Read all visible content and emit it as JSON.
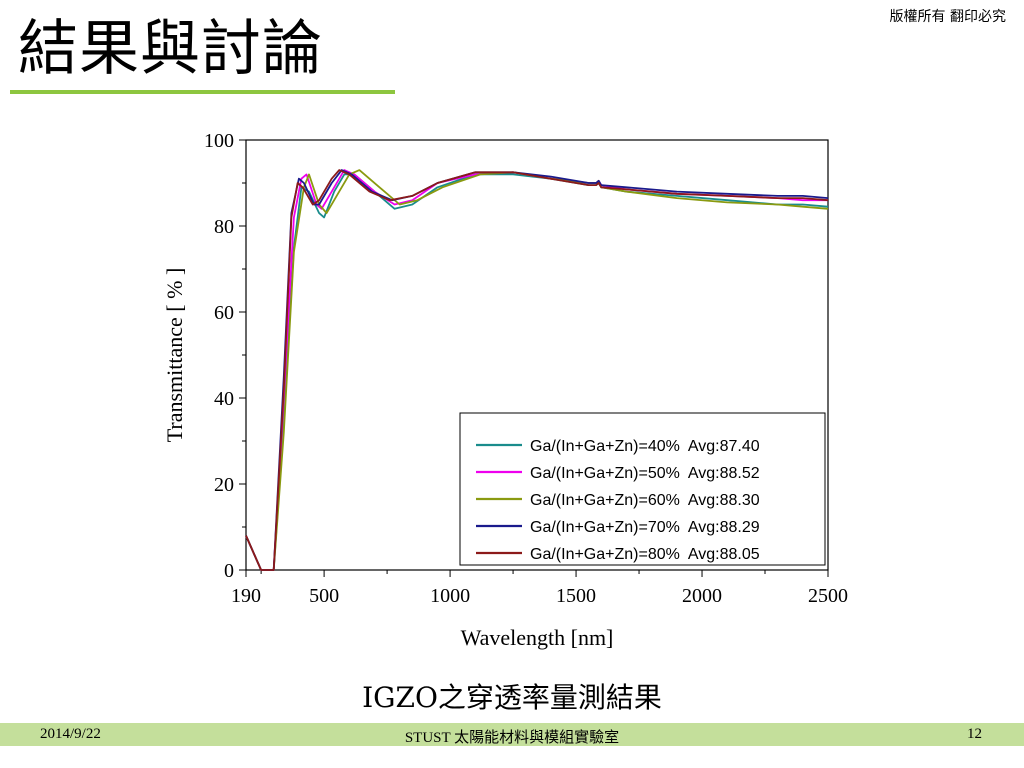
{
  "header": {
    "copyright": "版權所有 翻印必究",
    "title": "結果與討論",
    "accent_color": "#8dc63f"
  },
  "caption": "IGZO之穿透率量測結果",
  "footer": {
    "date": "2014/9/22",
    "center": "STUST 太陽能材料與模組實驗室",
    "page": "12",
    "bar_color": "#c4df9b"
  },
  "chart_data": {
    "type": "line",
    "xlabel": "Wavelength [nm]",
    "ylabel": "Transmittance [ % ]",
    "xlim": [
      190,
      2500
    ],
    "ylim": [
      0,
      100
    ],
    "xticks": [
      190,
      500,
      1000,
      1500,
      2000,
      2500
    ],
    "yticks": [
      0,
      20,
      40,
      60,
      80,
      100
    ],
    "grid": false,
    "legend_position": "bottom-right",
    "series": [
      {
        "name": "Ga/(In+Ga+Zn)=40%  Avg:87.40",
        "color": "#1a8c8c",
        "x": [
          190,
          250,
          300,
          340,
          380,
          410,
          440,
          480,
          500,
          540,
          580,
          620,
          700,
          780,
          850,
          950,
          1100,
          1250,
          1400,
          1550,
          1580,
          1590,
          1600,
          1700,
          1900,
          2100,
          2300,
          2400,
          2500
        ],
        "y": [
          8,
          0,
          0,
          35,
          75,
          89,
          88,
          83,
          82,
          88,
          92,
          92,
          88,
          84,
          85,
          89,
          92,
          92,
          91,
          89.5,
          89.5,
          90,
          89,
          88,
          87,
          86,
          85,
          85,
          84.5
        ]
      },
      {
        "name": "Ga/(In+Ga+Zn)=50%  Avg:88.52",
        "color": "#ee00ee",
        "x": [
          190,
          250,
          300,
          340,
          380,
          410,
          430,
          470,
          490,
          540,
          580,
          620,
          700,
          780,
          850,
          950,
          1100,
          1250,
          1400,
          1550,
          1580,
          1590,
          1600,
          1700,
          1900,
          2100,
          2300,
          2400,
          2500
        ],
        "y": [
          8,
          0,
          0,
          40,
          82,
          91,
          92,
          85,
          84,
          89,
          93,
          92,
          88,
          85,
          86,
          90,
          92,
          92.5,
          91,
          90,
          90,
          90.5,
          89.5,
          88.5,
          87.5,
          87,
          86.5,
          86,
          86
        ]
      },
      {
        "name": "Ga/(In+Ga+Zn)=60%  Avg:88.30",
        "color": "#8a9a10",
        "x": [
          190,
          250,
          300,
          340,
          380,
          420,
          440,
          480,
          510,
          560,
          600,
          640,
          720,
          800,
          870,
          970,
          1120,
          1250,
          1400,
          1550,
          1580,
          1590,
          1600,
          1700,
          1900,
          2100,
          2300,
          2400,
          2500
        ],
        "y": [
          8,
          0,
          0,
          32,
          74,
          89,
          92,
          85,
          83,
          88,
          92,
          93,
          89,
          85,
          86,
          89,
          92,
          92.5,
          91,
          90,
          90,
          90.5,
          89,
          88,
          86.5,
          85.5,
          85,
          84.5,
          84
        ]
      },
      {
        "name": "Ga/(In+Ga+Zn)=70%  Avg:88.29",
        "color": "#1a1a8c",
        "x": [
          190,
          250,
          300,
          340,
          370,
          400,
          420,
          460,
          480,
          530,
          570,
          610,
          690,
          770,
          850,
          950,
          1100,
          1250,
          1400,
          1550,
          1580,
          1590,
          1600,
          1700,
          1900,
          2100,
          2300,
          2400,
          2500
        ],
        "y": [
          8,
          0,
          0,
          45,
          83,
          91,
          90,
          85,
          85,
          90,
          93,
          92,
          88,
          86,
          87,
          90,
          92.5,
          92.5,
          91.5,
          90,
          90,
          90.5,
          89.5,
          89,
          88,
          87.5,
          87,
          87,
          86.5
        ]
      },
      {
        "name": "Ga/(In+Ga+Zn)=80%  Avg:88.05",
        "color": "#8c1a1a",
        "x": [
          190,
          250,
          300,
          340,
          370,
          395,
          415,
          455,
          480,
          530,
          560,
          600,
          680,
          760,
          850,
          950,
          1100,
          1250,
          1400,
          1550,
          1580,
          1590,
          1600,
          1700,
          1900,
          2100,
          2300,
          2400,
          2500
        ],
        "y": [
          8,
          0,
          0,
          42,
          82,
          90,
          89,
          85,
          86,
          91,
          93,
          92,
          88,
          86,
          87,
          90,
          92.5,
          92.5,
          91,
          89.5,
          89.5,
          90,
          89,
          88.5,
          87.5,
          87,
          86.5,
          86.5,
          86
        ]
      }
    ]
  }
}
